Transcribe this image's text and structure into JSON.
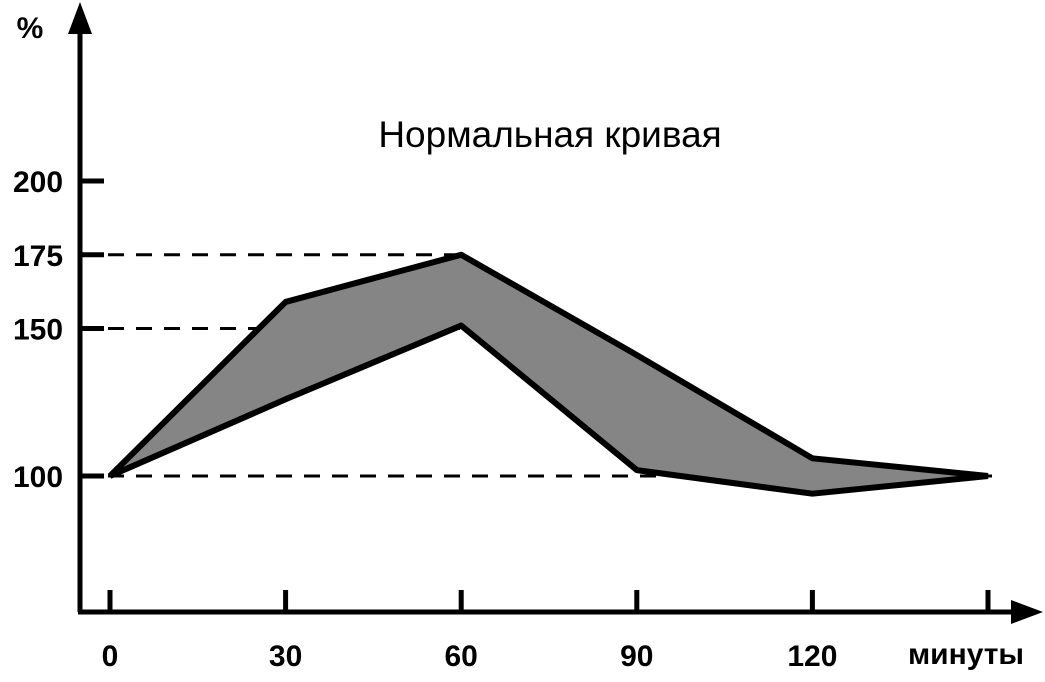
{
  "chart_data": {
    "type": "area",
    "title": "Нормальная кривая",
    "xlabel": "минуты",
    "ylabel": "%",
    "x_ticks": [
      0,
      30,
      60,
      90,
      120,
      150
    ],
    "x_tick_labels": [
      "0",
      "30",
      "60",
      "90",
      "120",
      ""
    ],
    "y_ticks": [
      100,
      150,
      175,
      200
    ],
    "y_tick_labels": [
      "100",
      "150",
      "175",
      "200"
    ],
    "xlim": [
      -5,
      165
    ],
    "ylim": [
      55,
      235
    ],
    "reference_lines": [
      100,
      150,
      175
    ],
    "band": {
      "upper": {
        "x": [
          0,
          30,
          60,
          90,
          120,
          150
        ],
        "y": [
          100,
          159,
          175,
          141,
          106,
          100
        ]
      },
      "lower": {
        "x": [
          0,
          30,
          60,
          90,
          120,
          150
        ],
        "y": [
          100,
          126,
          151,
          102,
          94,
          100
        ]
      }
    },
    "fill_color": "#858585",
    "line_color": "#000000",
    "grid": false
  }
}
